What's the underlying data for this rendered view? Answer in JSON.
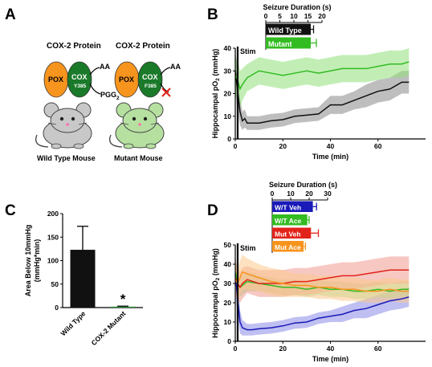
{
  "panels": {
    "a": {
      "letter": "A"
    },
    "b": {
      "letter": "B"
    },
    "c": {
      "letter": "C"
    },
    "d": {
      "letter": "D"
    }
  },
  "panel_a": {
    "wt_title": "COX-2 Protein",
    "mut_title": "COX-2 Protein",
    "pox": "POX",
    "cox": "COX",
    "wt_residue": "Y385",
    "mut_residue": "F385",
    "aa": "AA",
    "pgg": "PGG",
    "pgg_sub": "2",
    "wt_mouse": "Wild Type Mouse",
    "mut_mouse": "Mutant Mouse",
    "colors": {
      "pox": "#f7941d",
      "cox": "#1a7a2a",
      "mouse_wt": "#c8c8c8",
      "mouse_mut": "#b6e0a0",
      "cross": "#e2231a"
    }
  },
  "chart_data": [
    {
      "id": "B",
      "type": "line",
      "xlabel": "Time (min)",
      "ylabel": "Hippocampal pO",
      "ylabel_sub": "2",
      "ylabel_unit": " (mmHg)",
      "xlim": [
        0,
        80
      ],
      "ylim": [
        0,
        40
      ],
      "xticks": [
        0,
        20,
        40,
        60
      ],
      "yticks": [
        0,
        10,
        20,
        30,
        40
      ],
      "annotation": "Stim",
      "series": [
        {
          "name": "Wild Type",
          "color": "#111111",
          "band_color": "#888888",
          "x": [
            0,
            1,
            2,
            3,
            4,
            5,
            7,
            10,
            15,
            20,
            25,
            30,
            35,
            40,
            45,
            50,
            55,
            60,
            65,
            70,
            73
          ],
          "y": [
            30,
            21,
            12,
            8,
            9,
            7,
            7,
            7,
            8,
            8.5,
            10,
            10.5,
            11,
            15,
            15,
            17,
            19,
            21,
            22,
            25,
            25
          ],
          "err": [
            9,
            9,
            6,
            4,
            4,
            3,
            3,
            3,
            3,
            3,
            3,
            3,
            3,
            4,
            4,
            4,
            5,
            5,
            5,
            5,
            5
          ]
        },
        {
          "name": "Mutant",
          "color": "#33bb22",
          "band_color": "#8fe07a",
          "x": [
            0,
            1,
            2,
            3,
            5,
            10,
            15,
            20,
            25,
            30,
            35,
            40,
            45,
            50,
            55,
            60,
            65,
            70,
            73
          ],
          "y": [
            28,
            26,
            22,
            24,
            27,
            30,
            29,
            28,
            29,
            30,
            29,
            30,
            31,
            31,
            31,
            32,
            33,
            33,
            34
          ],
          "err": [
            8,
            9,
            8,
            7,
            6,
            6,
            6,
            6,
            6,
            6,
            6,
            6,
            6,
            6,
            6,
            6,
            6,
            6,
            6
          ]
        }
      ],
      "inset": {
        "title": "Seizure Duration (s)",
        "ticks": [
          0,
          5,
          10,
          15,
          20
        ],
        "xlim": [
          0,
          20
        ],
        "bars": [
          {
            "label": "Wild Type",
            "value": 16,
            "err": 1,
            "color": "#111111"
          },
          {
            "label": "Mutant",
            "value": 16,
            "err": 2,
            "color": "#33bb22"
          }
        ]
      }
    },
    {
      "id": "C",
      "type": "bar",
      "categories": [
        "Wild Type",
        "COX-2 Mutant"
      ],
      "values": [
        123,
        2
      ],
      "errors": [
        50,
        1
      ],
      "colors": [
        "#111111",
        "#2e9b3a"
      ],
      "ylabel": "Area Below 10mmHg",
      "ylabel2": "(mmHg*min)",
      "ylim": [
        0,
        200
      ],
      "yticks": [
        0,
        50,
        100,
        150,
        200
      ],
      "annotation": "*"
    },
    {
      "id": "D",
      "type": "line",
      "xlabel": "Time (min)",
      "ylabel": "Hippocampal pO",
      "ylabel_sub": "2",
      "ylabel_unit": " (mmHg)",
      "xlim": [
        0,
        80
      ],
      "ylim": [
        0,
        50
      ],
      "xticks": [
        0,
        20,
        40,
        60
      ],
      "yticks": [
        0,
        10,
        20,
        30,
        40,
        50
      ],
      "annotation": "Stim",
      "series": [
        {
          "name": "W/T Veh",
          "color": "#1a1ab8",
          "band_color": "#8a8ae8",
          "x": [
            0,
            1,
            2,
            3,
            5,
            7,
            10,
            15,
            20,
            25,
            30,
            35,
            40,
            45,
            50,
            55,
            60,
            65,
            70,
            73
          ],
          "y": [
            35,
            22,
            10,
            7,
            6,
            6,
            6.5,
            7,
            8,
            9.5,
            10,
            12,
            13,
            14,
            16,
            17,
            19,
            21,
            22,
            23
          ],
          "err": [
            10,
            10,
            6,
            4,
            3,
            3,
            3,
            3,
            3,
            3,
            3,
            3,
            3,
            4,
            4,
            5,
            5,
            5,
            5,
            5
          ]
        },
        {
          "name": "W/T Ace",
          "color": "#33bb22",
          "band_color": "#9ee08e",
          "x": [
            0,
            1,
            2,
            3,
            5,
            10,
            15,
            20,
            25,
            30,
            35,
            40,
            45,
            50,
            55,
            60,
            65,
            70,
            73
          ],
          "y": [
            36,
            30,
            28,
            29,
            31,
            30,
            29,
            28,
            28,
            27,
            28,
            27,
            27,
            26,
            26,
            27,
            26,
            27,
            27
          ],
          "err": [
            6,
            6,
            5,
            5,
            5,
            4,
            4,
            4,
            4,
            4,
            4,
            4,
            4,
            4,
            4,
            4,
            4,
            4,
            4
          ]
        },
        {
          "name": "Mut Veh",
          "color": "#e2231a",
          "band_color": "#f09a90",
          "x": [
            0,
            1,
            2,
            3,
            5,
            10,
            15,
            20,
            25,
            30,
            35,
            40,
            45,
            50,
            55,
            60,
            65,
            70,
            73
          ],
          "y": [
            33,
            30,
            28,
            30,
            32,
            30,
            30,
            30,
            31,
            31,
            32,
            33,
            34,
            34,
            35,
            36,
            37,
            37,
            37
          ],
          "err": [
            9,
            9,
            8,
            8,
            7,
            7,
            7,
            7,
            7,
            7,
            7,
            7,
            7,
            7,
            7,
            7,
            7,
            7,
            7
          ]
        },
        {
          "name": "Mut Ace",
          "color": "#f7941d",
          "band_color": "#fbc98d",
          "x": [
            0,
            1,
            2,
            3,
            5,
            10,
            15,
            20,
            25,
            30,
            35,
            40,
            45,
            50,
            55,
            60,
            65,
            70,
            73
          ],
          "y": [
            32,
            30,
            33,
            36,
            35,
            33,
            31,
            30,
            29,
            29,
            28,
            28,
            27,
            27,
            26,
            26,
            27,
            26,
            26
          ],
          "err": [
            8,
            8,
            9,
            9,
            8,
            7,
            7,
            7,
            6,
            6,
            6,
            6,
            6,
            6,
            6,
            6,
            6,
            6,
            6
          ]
        }
      ],
      "inset": {
        "title": "Seizure Duration (s)",
        "ticks": [
          0,
          10,
          20,
          30
        ],
        "xlim": [
          0,
          30
        ],
        "bars": [
          {
            "label": "W/T Veh",
            "value": 22,
            "err": 2,
            "color": "#1a1ab8"
          },
          {
            "label": "W/T Ace",
            "value": 19,
            "err": 1,
            "color": "#33bb22"
          },
          {
            "label": "Mut Veh",
            "value": 21,
            "err": 4,
            "color": "#e2231a"
          },
          {
            "label": "Mut Ace",
            "value": 17,
            "err": 1,
            "color": "#f7941d"
          }
        ]
      }
    }
  ]
}
